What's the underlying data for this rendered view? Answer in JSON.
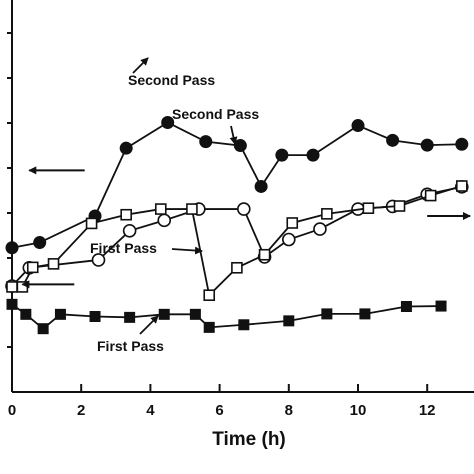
{
  "chart_data": {
    "type": "line",
    "xlabel": "Time (h)",
    "ylabel": "",
    "title": "",
    "xlim": [
      0,
      13.1
    ],
    "x_ticks": [
      "0",
      "2",
      "4",
      "6",
      "8",
      "10",
      "12"
    ],
    "x_tick_values": [
      0,
      2,
      4,
      6,
      8,
      10,
      12
    ],
    "grid": false,
    "legend": "none",
    "series": [
      {
        "axis": "left",
        "marker": "filled-circle",
        "color": "#111111",
        "x": [
          0,
          0.8,
          2.4,
          3.3,
          4.5,
          5.6,
          6.6,
          7.2,
          7.8,
          8.7,
          10.0,
          11.0,
          12.0,
          13.0
        ],
        "y": [
          0.435,
          0.447,
          0.508,
          0.664,
          0.723,
          0.679,
          0.67,
          0.576,
          0.648,
          0.648,
          0.716,
          0.682,
          0.671,
          0.673
        ]
      },
      {
        "axis": "right",
        "marker": "open-circle",
        "color": "#111111",
        "x": [
          0,
          0.5,
          2.5,
          3.4,
          4.4,
          5.4,
          6.7,
          7.3,
          8.0,
          8.9,
          10.0,
          11.0,
          12.0,
          13.0
        ],
        "y": [
          0.347,
          0.389,
          0.407,
          0.474,
          0.498,
          0.524,
          0.524,
          0.414,
          0.454,
          0.478,
          0.524,
          0.53,
          0.558,
          0.575
        ]
      },
      {
        "axis": "right",
        "marker": "open-square",
        "color": "#111111",
        "x": [
          0,
          0.3,
          0.6,
          1.2,
          2.3,
          3.3,
          4.3,
          5.2,
          5.7,
          6.5,
          7.3,
          8.1,
          9.1,
          10.3,
          11.2,
          12.1,
          13.0
        ],
        "y": [
          0.345,
          0.345,
          0.39,
          0.398,
          0.491,
          0.511,
          0.524,
          0.524,
          0.326,
          0.389,
          0.419,
          0.492,
          0.513,
          0.526,
          0.531,
          0.555,
          0.577
        ]
      },
      {
        "axis": "left",
        "marker": "filled-square",
        "color": "#111111",
        "x": [
          0,
          0.4,
          0.9,
          1.4,
          2.4,
          3.4,
          4.4,
          5.3,
          5.7,
          6.7,
          8.0,
          9.1,
          10.2,
          11.4,
          12.4
        ],
        "y": [
          0.305,
          0.282,
          0.249,
          0.282,
          0.277,
          0.275,
          0.282,
          0.282,
          0.252,
          0.258,
          0.267,
          0.283,
          0.283,
          0.3,
          0.301
        ]
      }
    ],
    "annotations": [
      {
        "text": "Second Pass",
        "x": 3.7,
        "y": 0.625,
        "target": "left-filled-circle"
      },
      {
        "text": "Second Pass",
        "x": 5.3,
        "y": 0.592,
        "target": "right-open-circle"
      },
      {
        "text": "First Pass",
        "x": 2.6,
        "y": 0.35,
        "target": "right-open-square"
      },
      {
        "text": "First Pass",
        "x": 2.3,
        "y": 0.205,
        "target": "left-filled-square"
      }
    ],
    "axis_arrows": [
      {
        "direction": "left",
        "x_from": 2.1,
        "x_to": 0.5,
        "y": 0.613
      },
      {
        "direction": "right",
        "x_from": 12.0,
        "x_to": 13.5,
        "y": 0.508
      },
      {
        "direction": "left",
        "x_from": 1.8,
        "x_to": 0.3,
        "y": 0.351
      }
    ]
  }
}
